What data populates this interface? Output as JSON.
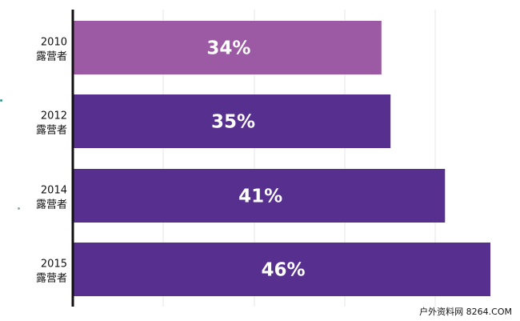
{
  "chart_data": {
    "type": "bar",
    "orientation": "horizontal",
    "categories": [
      [
        "2010",
        "露营者"
      ],
      [
        "2012",
        "露营者"
      ],
      [
        "2014",
        "露营者"
      ],
      [
        "2015",
        "露营者"
      ]
    ],
    "values": [
      34,
      35,
      41,
      46
    ],
    "value_labels": [
      "34%",
      "35%",
      "41%",
      "46%"
    ],
    "bar_colors": [
      "#9b5aa3",
      "#562f8f",
      "#562f8f",
      "#562f8f"
    ],
    "xlim": [
      0,
      46
    ],
    "grid": true,
    "legend": "none"
  },
  "watermark": "户外资料网 8264.COM",
  "colors": {
    "axis": "#111111",
    "grid": "#e4e4e4",
    "dot_teal": "#2a9d8f",
    "dot_gray": "#9aa5a8"
  }
}
